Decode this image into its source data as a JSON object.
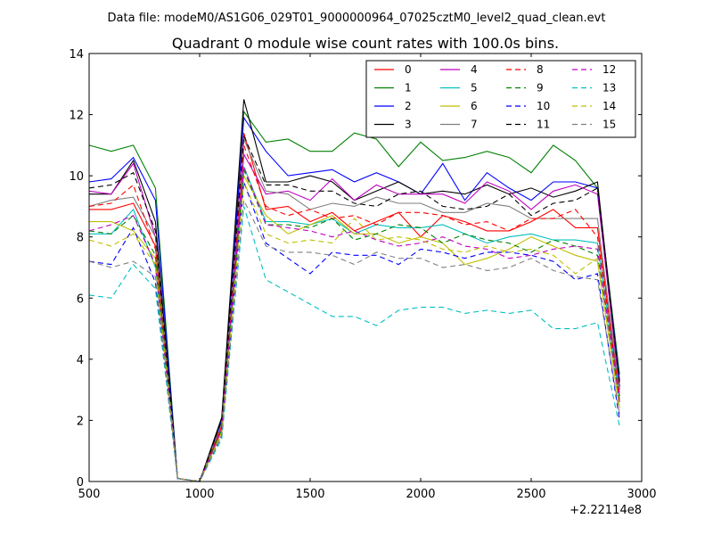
{
  "figure": {
    "suptitle": "Data file: modeM0/AS1G06_029T01_9000000964_07025cztM0_level2_quad_clean.evt"
  },
  "chart_data": {
    "type": "line",
    "title": "Quadrant 0 module wise count rates with 100.0s bins.",
    "xlabel": "",
    "ylabel": "",
    "x_offset_label": "+2.22114e8",
    "xlim": [
      500,
      3000
    ],
    "ylim": [
      0,
      14
    ],
    "x_ticks": [
      500,
      1000,
      1500,
      2000,
      2500,
      3000
    ],
    "x_tick_labels": [
      "500",
      "1000",
      "1500",
      "2000",
      "2500",
      "3000"
    ],
    "y_ticks": [
      0,
      2,
      4,
      6,
      8,
      10,
      12,
      14
    ],
    "y_tick_labels": [
      "0",
      "2",
      "4",
      "6",
      "8",
      "10",
      "12",
      "14"
    ],
    "grid": false,
    "legend_position": "top-right",
    "legend_columns": 4,
    "x": [
      500,
      600,
      700,
      800,
      900,
      1000,
      1100,
      1200,
      1300,
      1400,
      1500,
      1600,
      1700,
      1800,
      1900,
      2000,
      2100,
      2200,
      2300,
      2400,
      2500,
      2600,
      2700,
      2800,
      2900
    ],
    "series": [
      {
        "name": "0",
        "color": "#ff0000",
        "dash": false,
        "values": [
          8.9,
          8.9,
          9.1,
          7.7,
          0.1,
          0.0,
          1.8,
          11.4,
          8.9,
          9.0,
          8.5,
          8.8,
          8.2,
          8.5,
          8.8,
          8.0,
          8.7,
          8.5,
          8.2,
          8.2,
          8.5,
          8.9,
          8.3,
          8.3,
          2.8
        ]
      },
      {
        "name": "1",
        "color": "#008000",
        "dash": false,
        "values": [
          11.0,
          10.8,
          11.0,
          9.6,
          0.1,
          0.0,
          2.0,
          12.1,
          11.1,
          11.2,
          10.8,
          10.8,
          11.4,
          11.2,
          10.3,
          11.1,
          10.5,
          10.6,
          10.8,
          10.6,
          10.1,
          11.0,
          10.5,
          9.6,
          3.5
        ]
      },
      {
        "name": "2",
        "color": "#0000ff",
        "dash": false,
        "values": [
          9.8,
          9.9,
          10.6,
          9.2,
          0.1,
          0.0,
          2.0,
          11.9,
          10.8,
          10.0,
          10.1,
          10.2,
          9.8,
          10.1,
          9.8,
          9.4,
          10.4,
          9.2,
          10.1,
          9.6,
          9.2,
          9.8,
          9.8,
          9.6,
          3.3
        ]
      },
      {
        "name": "3",
        "color": "#000000",
        "dash": false,
        "values": [
          9.4,
          9.4,
          10.5,
          8.5,
          0.1,
          0.0,
          2.1,
          12.5,
          9.8,
          9.8,
          10.0,
          9.8,
          9.2,
          9.5,
          9.8,
          9.4,
          9.5,
          9.4,
          9.7,
          9.4,
          9.6,
          9.3,
          9.5,
          9.8,
          3.1
        ]
      },
      {
        "name": "4",
        "color": "#bf00bf",
        "dash": false,
        "values": [
          9.5,
          9.4,
          10.4,
          8.0,
          0.1,
          0.0,
          1.9,
          10.7,
          9.4,
          9.5,
          9.2,
          9.9,
          9.2,
          9.7,
          9.4,
          9.4,
          9.4,
          9.1,
          9.8,
          9.5,
          8.9,
          9.5,
          9.7,
          9.4,
          3.0
        ]
      },
      {
        "name": "5",
        "color": "#00bfbf",
        "dash": false,
        "values": [
          8.1,
          8.1,
          8.9,
          7.0,
          0.1,
          0.0,
          1.7,
          10.3,
          8.5,
          8.5,
          8.4,
          8.6,
          8.1,
          8.4,
          8.3,
          8.3,
          8.4,
          8.1,
          7.8,
          8.0,
          8.1,
          7.9,
          7.9,
          7.8,
          2.7
        ]
      },
      {
        "name": "6",
        "color": "#bfbf00",
        "dash": false,
        "values": [
          8.5,
          8.5,
          8.2,
          7.3,
          0.1,
          0.0,
          1.6,
          10.0,
          8.7,
          8.1,
          8.4,
          8.7,
          8.1,
          8.1,
          7.8,
          8.0,
          7.8,
          7.1,
          7.3,
          7.6,
          8.0,
          7.7,
          7.4,
          7.2,
          2.4
        ]
      },
      {
        "name": "7",
        "color": "#808080",
        "dash": false,
        "values": [
          9.0,
          9.2,
          9.3,
          8.0,
          0.1,
          0.0,
          1.9,
          11.2,
          9.5,
          9.4,
          8.9,
          9.1,
          9.0,
          9.3,
          9.1,
          9.1,
          8.8,
          8.8,
          9.1,
          9.0,
          8.6,
          8.6,
          8.6,
          8.6,
          2.9
        ]
      },
      {
        "name": "8",
        "color": "#ff0000",
        "dash": true,
        "values": [
          9.0,
          9.1,
          9.7,
          7.6,
          0.1,
          0.0,
          1.8,
          11.0,
          9.0,
          8.7,
          8.9,
          8.6,
          8.7,
          8.4,
          8.8,
          8.8,
          8.7,
          8.4,
          8.5,
          8.2,
          8.6,
          8.6,
          8.9,
          8.0,
          2.8
        ]
      },
      {
        "name": "9",
        "color": "#008000",
        "dash": true,
        "values": [
          8.2,
          8.1,
          8.7,
          7.4,
          0.1,
          0.0,
          1.7,
          10.2,
          8.4,
          8.4,
          8.3,
          8.6,
          7.9,
          8.1,
          8.4,
          8.3,
          7.8,
          8.1,
          7.9,
          7.8,
          7.5,
          7.9,
          7.7,
          7.4,
          2.6
        ]
      },
      {
        "name": "10",
        "color": "#0000ff",
        "dash": true,
        "values": [
          7.2,
          7.1,
          8.3,
          6.5,
          0.1,
          0.0,
          1.5,
          9.8,
          7.8,
          7.3,
          6.8,
          7.5,
          7.4,
          7.4,
          7.1,
          7.6,
          7.5,
          7.3,
          7.5,
          7.5,
          7.4,
          7.2,
          6.6,
          6.8,
          2.0
        ]
      },
      {
        "name": "11",
        "color": "#000000",
        "dash": true,
        "values": [
          9.6,
          9.7,
          10.1,
          8.2,
          0.1,
          0.0,
          2.0,
          11.3,
          9.7,
          9.7,
          9.5,
          9.5,
          9.1,
          9.0,
          9.4,
          9.5,
          9.0,
          8.9,
          9.0,
          9.4,
          8.7,
          9.1,
          9.2,
          9.6,
          3.2
        ]
      },
      {
        "name": "12",
        "color": "#bf00bf",
        "dash": true,
        "values": [
          8.2,
          8.4,
          8.7,
          7.1,
          0.1,
          0.0,
          1.7,
          10.3,
          8.4,
          8.3,
          8.2,
          8.0,
          8.2,
          7.9,
          7.7,
          7.8,
          8.0,
          7.7,
          7.6,
          7.3,
          7.4,
          7.6,
          7.7,
          7.6,
          2.6
        ]
      },
      {
        "name": "13",
        "color": "#00bfbf",
        "dash": true,
        "values": [
          6.1,
          6.0,
          7.1,
          6.3,
          0.1,
          0.0,
          1.4,
          9.0,
          6.6,
          6.2,
          5.8,
          5.4,
          5.4,
          5.1,
          5.6,
          5.7,
          5.7,
          5.5,
          5.6,
          5.5,
          5.6,
          5.0,
          5.0,
          5.2,
          1.8
        ]
      },
      {
        "name": "14",
        "color": "#bfbf00",
        "dash": true,
        "values": [
          7.9,
          7.7,
          8.1,
          7.1,
          0.1,
          0.0,
          1.6,
          9.8,
          8.1,
          7.8,
          7.9,
          7.8,
          8.6,
          7.9,
          8.0,
          7.9,
          7.6,
          7.5,
          7.7,
          7.5,
          7.6,
          7.4,
          6.8,
          7.3,
          2.4
        ]
      },
      {
        "name": "15",
        "color": "#808080",
        "dash": true,
        "values": [
          7.2,
          7.0,
          7.2,
          6.7,
          0.1,
          0.0,
          1.5,
          9.2,
          7.7,
          7.5,
          7.5,
          7.4,
          7.1,
          7.5,
          7.3,
          7.3,
          7.0,
          7.1,
          6.9,
          7.0,
          7.3,
          6.9,
          6.7,
          6.6,
          2.2
        ]
      }
    ]
  }
}
